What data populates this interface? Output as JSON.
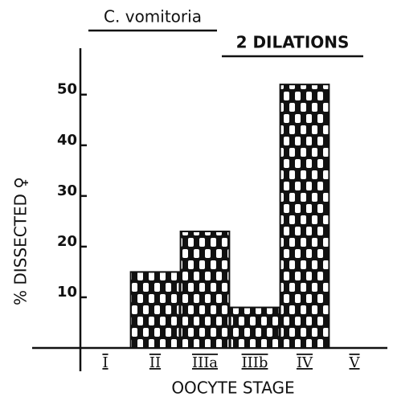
{
  "chart_data": {
    "type": "bar",
    "title": "C. vomitoria",
    "subtitle": "2 DILATIONS",
    "y_label": "% DISSECTED ♀",
    "x_label": "OOCYTE STAGE",
    "categories": [
      "I",
      "II",
      "IIIa",
      "IIIb",
      "IV",
      "V"
    ],
    "values": [
      0,
      15,
      23,
      8,
      52,
      0
    ],
    "color": "#111111",
    "ylim": [
      0,
      59
    ],
    "yticks": [
      10,
      20,
      30,
      40,
      50
    ],
    "grid": false
  }
}
